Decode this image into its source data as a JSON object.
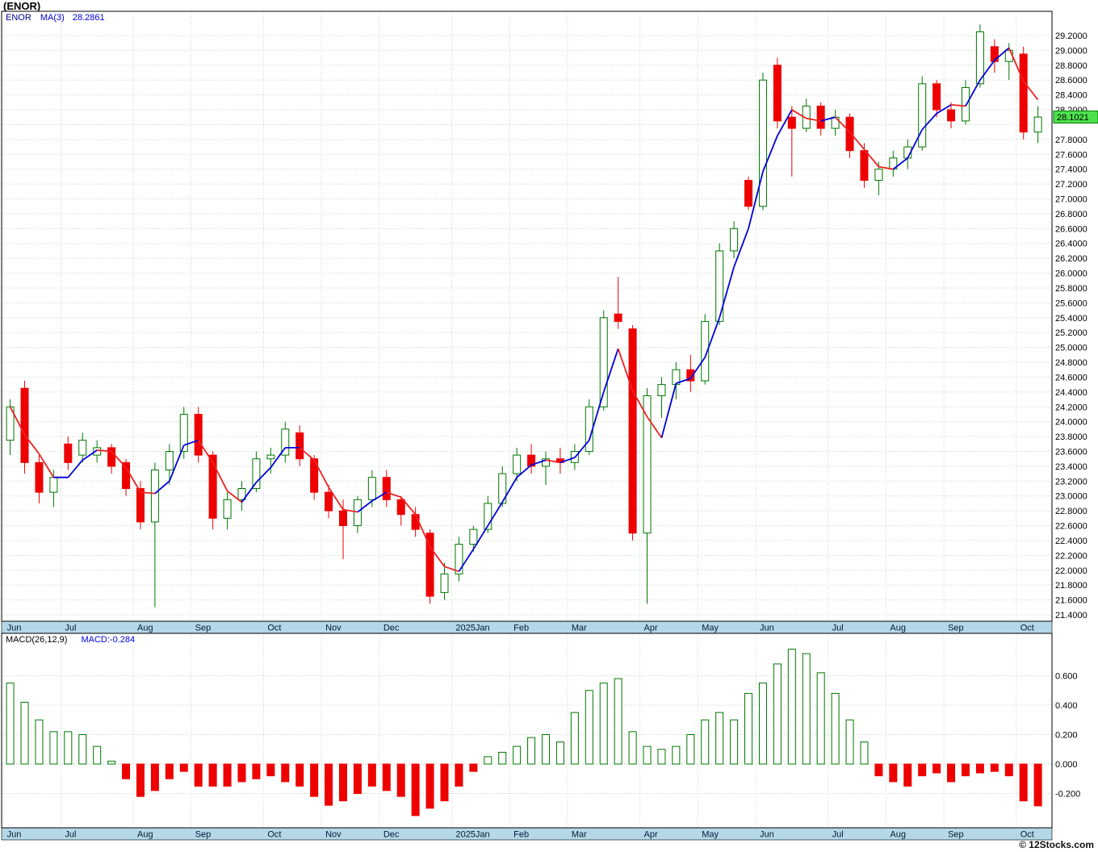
{
  "title": "(ENOR)",
  "price_panel": {
    "legend": {
      "symbol": "ENOR",
      "ma_label": "MA(3)",
      "ma_value": "28.2861"
    },
    "last_price": "28.1021"
  },
  "macd_panel": {
    "legend": {
      "label": "MACD(26,12,9)",
      "value": "MACD:-0.284"
    }
  },
  "footer": "© 12Stocks.com",
  "colors": {
    "up": "#007700",
    "down": "#ee0000",
    "ma_up": "#0000dd",
    "ma_down": "#ee2222",
    "grid": "#c4d9c4",
    "zero_grid": "#a8c6a8",
    "month_strip": "#b5d8e8",
    "strip_text": "#001a33",
    "tag_bg": "#4de14d",
    "axis_text": "#000000",
    "border": "#000000"
  },
  "chart_data": [
    {
      "type": "candlestick",
      "title": "ENOR weekly price with MA(3)",
      "ylim": [
        21.4,
        29.2
      ],
      "ytick_step": 0.2,
      "ytick_decimals": 4,
      "hidden_ytick": 28.0,
      "last_price": 28.1021,
      "legend_position": "top-left",
      "grid": true,
      "months": [
        {
          "label": "Jun",
          "weeks": 4
        },
        {
          "label": "Jul",
          "weeks": 5
        },
        {
          "label": "Aug",
          "weeks": 4
        },
        {
          "label": "Sep",
          "weeks": 5
        },
        {
          "label": "Oct",
          "weeks": 4
        },
        {
          "label": "Nov",
          "weeks": 4
        },
        {
          "label": "Dec",
          "weeks": 5
        },
        {
          "label": "2025Jan",
          "weeks": 4
        },
        {
          "label": "Feb",
          "weeks": 4
        },
        {
          "label": "Mar",
          "weeks": 5
        },
        {
          "label": "Apr",
          "weeks": 4
        },
        {
          "label": "May",
          "weeks": 4
        },
        {
          "label": "Jun",
          "weeks": 5
        },
        {
          "label": "Jul",
          "weeks": 4
        },
        {
          "label": "Aug",
          "weeks": 4
        },
        {
          "label": "Sep",
          "weeks": 5
        },
        {
          "label": "Oct",
          "weeks": 2
        }
      ],
      "ohlc": [
        [
          23.75,
          24.3,
          23.55,
          24.2
        ],
        [
          24.45,
          24.55,
          23.3,
          23.45
        ],
        [
          23.45,
          23.55,
          22.9,
          23.05
        ],
        [
          23.05,
          23.35,
          22.85,
          23.25
        ],
        [
          23.7,
          23.8,
          23.35,
          23.45
        ],
        [
          23.55,
          23.85,
          23.45,
          23.75
        ],
        [
          23.55,
          23.75,
          23.45,
          23.65
        ],
        [
          23.65,
          23.7,
          23.3,
          23.4
        ],
        [
          23.45,
          23.5,
          23.0,
          23.1
        ],
        [
          23.1,
          23.2,
          22.55,
          22.65
        ],
        [
          22.65,
          23.45,
          21.5,
          23.35
        ],
        [
          23.35,
          23.7,
          23.15,
          23.6
        ],
        [
          23.6,
          24.2,
          23.5,
          24.1
        ],
        [
          24.1,
          24.2,
          23.45,
          23.55
        ],
        [
          23.55,
          23.6,
          22.55,
          22.7
        ],
        [
          22.7,
          23.05,
          22.55,
          22.95
        ],
        [
          22.95,
          23.2,
          22.8,
          23.1
        ],
        [
          23.1,
          23.6,
          23.05,
          23.5
        ],
        [
          23.5,
          23.65,
          23.3,
          23.55
        ],
        [
          23.55,
          24.0,
          23.45,
          23.9
        ],
        [
          23.85,
          23.95,
          23.4,
          23.5
        ],
        [
          23.5,
          23.55,
          22.95,
          23.05
        ],
        [
          23.05,
          23.15,
          22.7,
          22.8
        ],
        [
          22.8,
          22.95,
          22.15,
          22.6
        ],
        [
          22.6,
          23.0,
          22.5,
          22.95
        ],
        [
          22.95,
          23.35,
          22.85,
          23.25
        ],
        [
          23.25,
          23.35,
          22.85,
          22.95
        ],
        [
          22.95,
          23.0,
          22.6,
          22.75
        ],
        [
          22.75,
          22.85,
          22.45,
          22.55
        ],
        [
          22.5,
          22.55,
          21.55,
          21.65
        ],
        [
          21.7,
          22.1,
          21.6,
          21.95
        ],
        [
          21.95,
          22.45,
          21.85,
          22.35
        ],
        [
          22.35,
          22.6,
          22.25,
          22.55
        ],
        [
          22.55,
          23.0,
          22.5,
          22.9
        ],
        [
          22.9,
          23.4,
          22.85,
          23.3
        ],
        [
          23.3,
          23.65,
          23.2,
          23.55
        ],
        [
          23.55,
          23.7,
          23.3,
          23.4
        ],
        [
          23.4,
          23.6,
          23.15,
          23.5
        ],
        [
          23.5,
          23.65,
          23.3,
          23.45
        ],
        [
          23.45,
          23.7,
          23.35,
          23.6
        ],
        [
          23.6,
          24.3,
          23.55,
          24.2
        ],
        [
          24.2,
          25.5,
          24.15,
          25.4
        ],
        [
          25.45,
          25.95,
          25.25,
          25.35
        ],
        [
          25.25,
          25.3,
          22.4,
          22.5
        ],
        [
          22.5,
          24.45,
          21.55,
          24.35
        ],
        [
          24.35,
          24.6,
          24.05,
          24.5
        ],
        [
          24.5,
          24.8,
          24.3,
          24.7
        ],
        [
          24.7,
          24.9,
          24.4,
          24.55
        ],
        [
          24.55,
          25.45,
          24.5,
          25.35
        ],
        [
          25.35,
          26.4,
          25.3,
          26.3
        ],
        [
          26.3,
          26.7,
          26.2,
          26.6
        ],
        [
          27.25,
          27.3,
          26.85,
          26.9
        ],
        [
          26.9,
          28.7,
          26.85,
          28.6
        ],
        [
          28.8,
          28.9,
          27.95,
          28.05
        ],
        [
          28.1,
          28.25,
          27.3,
          27.95
        ],
        [
          27.95,
          28.35,
          27.9,
          28.25
        ],
        [
          28.25,
          28.3,
          27.85,
          27.95
        ],
        [
          27.95,
          28.2,
          27.85,
          28.1
        ],
        [
          28.1,
          28.15,
          27.55,
          27.65
        ],
        [
          27.65,
          27.75,
          27.15,
          27.25
        ],
        [
          27.25,
          27.5,
          27.05,
          27.4
        ],
        [
          27.4,
          27.65,
          27.3,
          27.55
        ],
        [
          27.55,
          27.8,
          27.4,
          27.7
        ],
        [
          27.7,
          28.65,
          27.65,
          28.55
        ],
        [
          28.55,
          28.6,
          28.1,
          28.2
        ],
        [
          28.2,
          28.3,
          27.95,
          28.05
        ],
        [
          28.05,
          28.6,
          28.0,
          28.5
        ],
        [
          28.55,
          29.35,
          28.5,
          29.25
        ],
        [
          29.05,
          29.15,
          28.7,
          28.85
        ],
        [
          28.85,
          29.1,
          28.6,
          29.0
        ],
        [
          28.95,
          29.05,
          27.8,
          27.9
        ],
        [
          27.9,
          28.25,
          27.75,
          28.1021
        ]
      ]
    },
    {
      "type": "bar",
      "title": "MACD(26,12,9) histogram",
      "ylim": [
        -0.42,
        0.85
      ],
      "yticks": [
        0.6,
        0.4,
        0.2,
        0.0,
        -0.2
      ],
      "ytick_decimals": 3,
      "grid": true,
      "values": [
        0.55,
        0.42,
        0.3,
        0.22,
        0.22,
        0.2,
        0.12,
        0.02,
        -0.1,
        -0.22,
        -0.18,
        -0.1,
        -0.05,
        -0.15,
        -0.15,
        -0.15,
        -0.12,
        -0.1,
        -0.08,
        -0.12,
        -0.15,
        -0.22,
        -0.28,
        -0.25,
        -0.2,
        -0.15,
        -0.18,
        -0.22,
        -0.35,
        -0.3,
        -0.25,
        -0.15,
        -0.05,
        0.05,
        0.08,
        0.12,
        0.18,
        0.2,
        0.15,
        0.35,
        0.5,
        0.55,
        0.58,
        0.22,
        0.12,
        0.1,
        0.12,
        0.2,
        0.3,
        0.35,
        0.3,
        0.48,
        0.55,
        0.68,
        0.78,
        0.75,
        0.62,
        0.48,
        0.3,
        0.15,
        -0.08,
        -0.12,
        -0.15,
        -0.08,
        -0.06,
        -0.12,
        -0.08,
        -0.06,
        -0.05,
        -0.08,
        -0.25,
        -0.284
      ]
    }
  ]
}
